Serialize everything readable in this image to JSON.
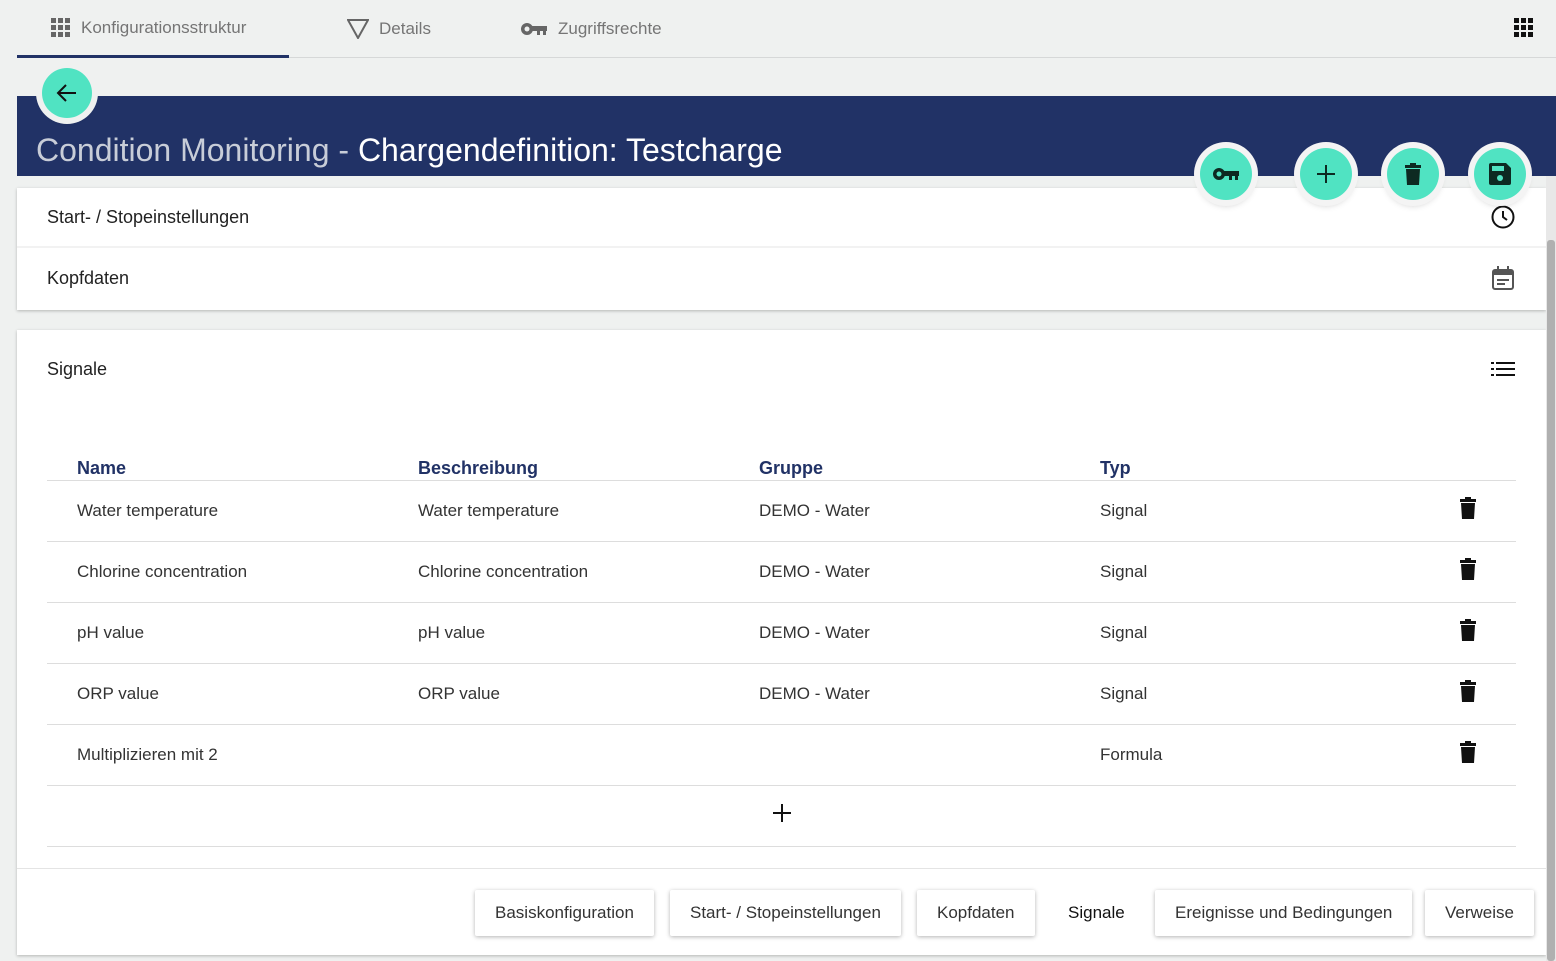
{
  "tabs": [
    {
      "label": "Konfigurationsstruktur",
      "icon": "grid-icon"
    },
    {
      "label": "Details",
      "icon": "filter-icon"
    },
    {
      "label": "Zugriffsrechte",
      "icon": "key-icon"
    }
  ],
  "header": {
    "title_prefix": "Condition Monitoring - ",
    "title": "Chargendefinition: Testcharge",
    "bg": "#213266",
    "accent": "#50e3c2"
  },
  "sections": {
    "start_stop": "Start- / Stopeinstellungen",
    "kopfdaten": "Kopfdaten",
    "signale": "Signale"
  },
  "table": {
    "columns": [
      "Name",
      "Beschreibung",
      "Gruppe",
      "Typ"
    ],
    "rows": [
      {
        "name": "Water temperature",
        "beschreibung": "Water temperature",
        "gruppe": "DEMO - Water",
        "typ": "Signal"
      },
      {
        "name": "Chlorine concentration",
        "beschreibung": "Chlorine concentration",
        "gruppe": "DEMO - Water",
        "typ": "Signal"
      },
      {
        "name": "pH value",
        "beschreibung": "pH value",
        "gruppe": "DEMO - Water",
        "typ": "Signal"
      },
      {
        "name": "ORP value",
        "beschreibung": "ORP value",
        "gruppe": "DEMO - Water",
        "typ": "Signal"
      },
      {
        "name": "Multiplizieren mit 2",
        "beschreibung": "",
        "gruppe": "",
        "typ": "Formula"
      }
    ]
  },
  "footer": [
    "Basiskonfiguration",
    "Start- / Stopeinstellungen",
    "Kopfdaten",
    "Signale",
    "Ereignisse und Bedingungen",
    "Verweise"
  ]
}
